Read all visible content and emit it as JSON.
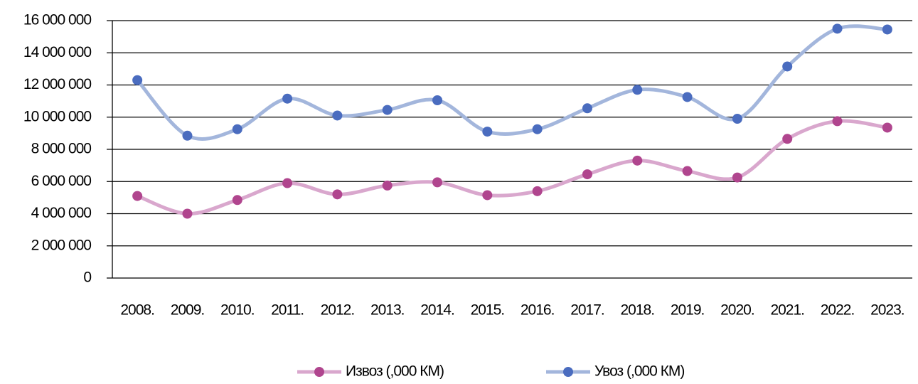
{
  "chart_data": {
    "type": "line",
    "categories": [
      "2008.",
      "2009.",
      "2010.",
      "2011.",
      "2012.",
      "2013.",
      "2014.",
      "2015.",
      "2016.",
      "2017.",
      "2018.",
      "2019.",
      "2020.",
      "2021.",
      "2022.",
      "2023."
    ],
    "series": [
      {
        "name": "Извоз (,000 КМ)",
        "color": "#b0458e",
        "line_color": "#d9a7cd",
        "values": [
          5100000,
          4000000,
          4850000,
          5900000,
          5200000,
          5750000,
          5950000,
          5150000,
          5400000,
          6450000,
          7300000,
          6650000,
          6250000,
          8650000,
          9750000,
          9350000
        ]
      },
      {
        "name": "Увоз (,000 КМ)",
        "color": "#4a6cbf",
        "line_color": "#a3b6dc",
        "values": [
          12300000,
          8850000,
          9250000,
          11150000,
          10100000,
          10450000,
          11050000,
          9100000,
          9250000,
          10550000,
          11700000,
          11250000,
          9900000,
          13150000,
          15500000,
          15450000
        ]
      }
    ],
    "ylim": [
      0,
      16000000
    ],
    "yticks": [
      0,
      {
        "value": 2000000,
        "label": "2 000 000"
      },
      {
        "value": 4000000,
        "label": "4 000 000"
      },
      {
        "value": 6000000,
        "label": "6 000 000"
      },
      {
        "value": 8000000,
        "label": "8 000 000"
      },
      {
        "value": 10000000,
        "label": "10 000 000"
      },
      {
        "value": 12000000,
        "label": "12 000 000"
      },
      {
        "value": 14000000,
        "label": "14 000 000"
      },
      {
        "value": 16000000,
        "label": "16 000 000"
      }
    ],
    "grid": true,
    "smooth": true,
    "legend": "bottom"
  }
}
